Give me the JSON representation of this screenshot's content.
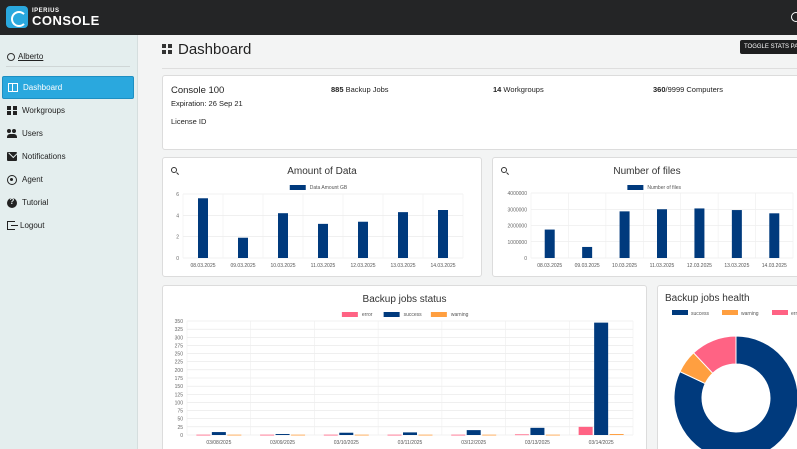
{
  "app": {
    "logo_top": "IPERIUS",
    "logo_bottom": "CONSOLE"
  },
  "colors": {
    "accent": "#2aa8de",
    "topbar": "#242526",
    "sidebar": "#e4eeee",
    "navy": "#003a7d",
    "error": "#ff6384",
    "warning": "#ff9f40"
  },
  "user": {
    "name": "Alberto"
  },
  "sidebar": {
    "items": [
      {
        "label": "Dashboard",
        "icon": "dashboard-icon",
        "active": true
      },
      {
        "label": "Workgroups",
        "icon": "workgroups-icon"
      },
      {
        "label": "Users",
        "icon": "users-icon"
      },
      {
        "label": "Notifications",
        "icon": "notifications-icon"
      },
      {
        "label": "Agent",
        "icon": "agent-icon"
      },
      {
        "label": "Tutorial",
        "icon": "help-icon"
      },
      {
        "label": "Logout",
        "icon": "logout-icon"
      }
    ]
  },
  "header": {
    "title": "Dashboard",
    "toggle_label": "TOGGLE STATS PA"
  },
  "info": {
    "console_name": "Console 100",
    "expiration": "Expiration: 26 Sep 21",
    "license": "License ID",
    "backup_jobs_count": "885",
    "backup_jobs_label": " Backup Jobs",
    "workgroups_count": "14",
    "workgroups_label": " Workgroups",
    "computers_count": "360",
    "computers_label": "/9999 Computers"
  },
  "chart_data": [
    {
      "id": "amount-of-data",
      "type": "bar",
      "title": "Amount of Data",
      "categories": [
        "08.03.2025",
        "09.03.2025",
        "10.03.2025",
        "11.03.2025",
        "12.03.2025",
        "13.03.2025",
        "14.03.2025"
      ],
      "series": [
        {
          "name": "Data Amount GB",
          "color": "#003a7d",
          "values": [
            5.6,
            1.9,
            4.2,
            3.2,
            3.4,
            4.3,
            4.5
          ]
        }
      ],
      "ylim": [
        0,
        6
      ],
      "yticks": [
        0,
        2,
        4,
        6
      ],
      "legend": "top"
    },
    {
      "id": "number-of-files",
      "type": "bar",
      "title": "Number of files",
      "categories": [
        "08.03.2025",
        "09.03.2025",
        "10.03.2025",
        "11.03.2025",
        "12.03.2025",
        "13.03.2025",
        "14.03.2025"
      ],
      "series": [
        {
          "name": "Number of files",
          "color": "#003a7d",
          "values": [
            1750000,
            680000,
            2870000,
            3000000,
            3050000,
            2950000,
            2750000
          ]
        }
      ],
      "ylim": [
        0,
        4000000
      ],
      "yticks": [
        0,
        1000000,
        2000000,
        3000000,
        4000000
      ],
      "legend": "top"
    },
    {
      "id": "backup-jobs-status",
      "type": "bar",
      "title": "Backup jobs status",
      "categories": [
        "03/08/2025",
        "03/09/2025",
        "03/10/2025",
        "03/11/2025",
        "03/12/2025",
        "03/13/2025",
        "03/14/2025"
      ],
      "series": [
        {
          "name": "error",
          "color": "#ff6384",
          "values": [
            1,
            1,
            1,
            1,
            1,
            2,
            25
          ]
        },
        {
          "name": "success",
          "color": "#003a7d",
          "values": [
            9,
            3,
            7,
            8,
            15,
            22,
            345
          ]
        },
        {
          "name": "warning",
          "color": "#ff9f40",
          "values": [
            1,
            1,
            1,
            1,
            1,
            1,
            3
          ]
        }
      ],
      "ylim": [
        0,
        350
      ],
      "yticks": [
        0,
        25,
        50,
        75,
        100,
        125,
        150,
        175,
        200,
        225,
        250,
        275,
        300,
        325,
        350
      ],
      "legend": "top"
    },
    {
      "id": "backup-jobs-health",
      "type": "pie",
      "title": "Backup jobs health",
      "labels": [
        "success",
        "warning",
        "error"
      ],
      "colors": [
        "#003a7d",
        "#ff9f40",
        "#ff6384"
      ],
      "values": [
        82,
        6,
        12
      ],
      "legend": "top"
    }
  ]
}
